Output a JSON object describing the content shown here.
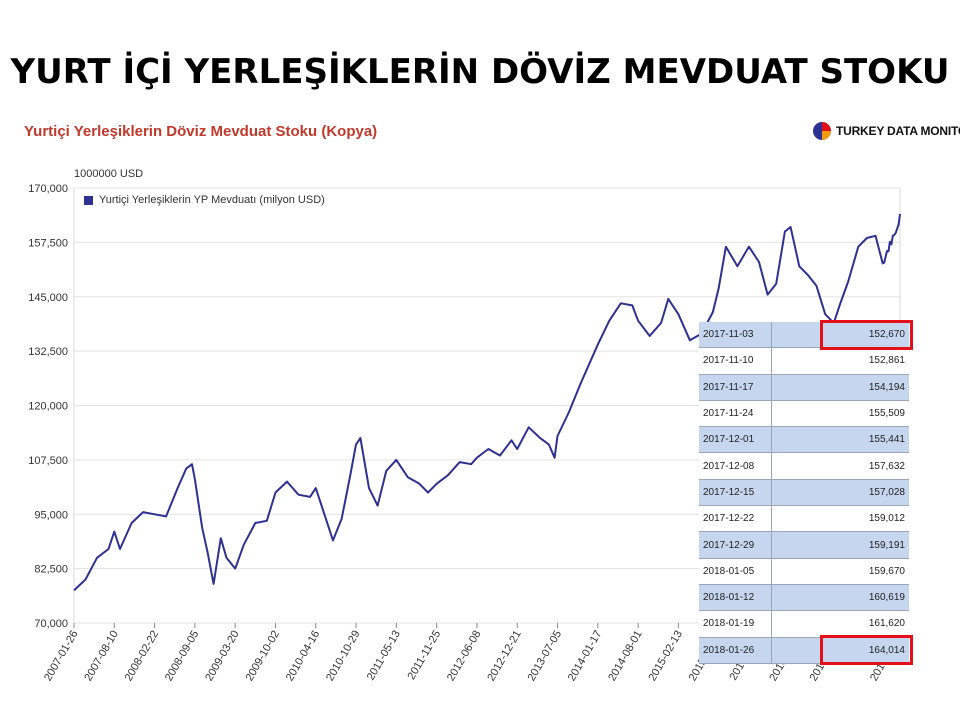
{
  "slide": {
    "title": "YURT İÇİ YERLEŞİKLERİN DÖVİZ MEVDUAT STOKU"
  },
  "chart_header": {
    "title": "Yurtiçi Yerleşiklerin Döviz Mevduat Stoku (Kopya)",
    "brand": "TURKEY DATA MONITOR",
    "unit": "1000000 USD"
  },
  "colors": {
    "line": "#2e3192",
    "title_red": "#c0392b",
    "highlight": "#e3101a",
    "table_shade": "#c6d6ee"
  },
  "chart_data": {
    "type": "line",
    "title": "Yurtiçi Yerleşiklerin Döviz Mevduat Stoku (Kopya)",
    "ylabel": "1000000 USD",
    "ylim": [
      70000,
      170000
    ],
    "y_ticks": [
      "70,000",
      "82,500",
      "95,000",
      "107,500",
      "120,000",
      "132,500",
      "145,000",
      "157,500",
      "170,000"
    ],
    "x_ticks": [
      "2007-01-26",
      "2007-08-10",
      "2008-02-22",
      "2008-09-05",
      "2009-03-20",
      "2009-10-02",
      "2010-04-16",
      "2010-10-29",
      "2011-05-13",
      "2011-11-25",
      "2012-06-08",
      "2012-12-21",
      "2013-07-05",
      "2014-01-17",
      "2014-08-01",
      "2015-02-13",
      "2015-08-28",
      "2016-03-11",
      "2016-09-23",
      "2017-04-07",
      "2018-01-26"
    ],
    "grid": true,
    "legend_position": "top-left",
    "series": [
      {
        "name": "Yurtiçi Yerleşiklerin YP Mevduatı (milyon USD)",
        "points": [
          [
            "2007-01-26",
            77500
          ],
          [
            "2007-03-23",
            80000
          ],
          [
            "2007-05-18",
            85000
          ],
          [
            "2007-07-13",
            87000
          ],
          [
            "2007-08-10",
            91000
          ],
          [
            "2007-09-07",
            87000
          ],
          [
            "2007-11-02",
            93000
          ],
          [
            "2007-12-28",
            95500
          ],
          [
            "2008-02-22",
            95000
          ],
          [
            "2008-04-18",
            94500
          ],
          [
            "2008-06-13",
            101000
          ],
          [
            "2008-07-25",
            105500
          ],
          [
            "2008-08-22",
            106500
          ],
          [
            "2008-09-05",
            103000
          ],
          [
            "2008-10-10",
            92000
          ],
          [
            "2008-11-07",
            86000
          ],
          [
            "2008-12-05",
            79000
          ],
          [
            "2009-01-09",
            89500
          ],
          [
            "2009-02-06",
            85000
          ],
          [
            "2009-03-20",
            82500
          ],
          [
            "2009-05-01",
            88000
          ],
          [
            "2009-06-26",
            93000
          ],
          [
            "2009-08-21",
            93500
          ],
          [
            "2009-10-02",
            100000
          ],
          [
            "2009-11-27",
            102500
          ],
          [
            "2010-01-22",
            99500
          ],
          [
            "2010-03-19",
            99000
          ],
          [
            "2010-04-16",
            101000
          ],
          [
            "2010-05-28",
            95000
          ],
          [
            "2010-07-09",
            89000
          ],
          [
            "2010-08-20",
            94000
          ],
          [
            "2010-10-01",
            104000
          ],
          [
            "2010-10-29",
            111000
          ],
          [
            "2010-11-19",
            112500
          ],
          [
            "2010-12-31",
            101000
          ],
          [
            "2011-02-11",
            97000
          ],
          [
            "2011-03-25",
            105000
          ],
          [
            "2011-05-13",
            107500
          ],
          [
            "2011-07-08",
            103500
          ],
          [
            "2011-09-02",
            102000
          ],
          [
            "2011-10-14",
            100000
          ],
          [
            "2011-11-25",
            102000
          ],
          [
            "2012-01-20",
            104000
          ],
          [
            "2012-03-16",
            107000
          ],
          [
            "2012-05-11",
            106500
          ],
          [
            "2012-06-08",
            108000
          ],
          [
            "2012-08-03",
            110000
          ],
          [
            "2012-09-28",
            108500
          ],
          [
            "2012-11-23",
            112000
          ],
          [
            "2012-12-21",
            110000
          ],
          [
            "2013-02-15",
            115000
          ],
          [
            "2013-04-12",
            112500
          ],
          [
            "2013-05-24",
            111000
          ],
          [
            "2013-06-21",
            108000
          ],
          [
            "2013-07-05",
            113000
          ],
          [
            "2013-08-30",
            118500
          ],
          [
            "2013-10-25",
            125000
          ],
          [
            "2013-12-20",
            131000
          ],
          [
            "2014-01-17",
            134000
          ],
          [
            "2014-03-14",
            139500
          ],
          [
            "2014-05-09",
            143500
          ],
          [
            "2014-07-04",
            143000
          ],
          [
            "2014-08-01",
            139500
          ],
          [
            "2014-09-26",
            136000
          ],
          [
            "2014-11-21",
            139000
          ],
          [
            "2014-12-26",
            144500
          ],
          [
            "2015-02-13",
            141000
          ],
          [
            "2015-04-10",
            135000
          ],
          [
            "2015-06-05",
            136500
          ],
          [
            "2015-07-31",
            141500
          ],
          [
            "2015-08-28",
            147000
          ],
          [
            "2015-10-02",
            156500
          ],
          [
            "2015-11-27",
            152000
          ],
          [
            "2016-01-22",
            156500
          ],
          [
            "2016-03-11",
            153000
          ],
          [
            "2016-04-22",
            145500
          ],
          [
            "2016-06-03",
            148000
          ],
          [
            "2016-07-15",
            160000
          ],
          [
            "2016-08-12",
            161000
          ],
          [
            "2016-09-23",
            152000
          ],
          [
            "2016-11-04",
            150000
          ],
          [
            "2016-12-16",
            147500
          ],
          [
            "2017-01-27",
            141000
          ],
          [
            "2017-03-10",
            139000
          ],
          [
            "2017-04-07",
            143000
          ],
          [
            "2017-05-19",
            148500
          ],
          [
            "2017-07-07",
            156500
          ],
          [
            "2017-08-18",
            158500
          ],
          [
            "2017-09-29",
            159000
          ],
          [
            "2017-11-03",
            152670
          ],
          [
            "2017-11-10",
            152861
          ],
          [
            "2017-11-17",
            154194
          ],
          [
            "2017-11-24",
            155509
          ],
          [
            "2017-12-01",
            155441
          ],
          [
            "2017-12-08",
            157632
          ],
          [
            "2017-12-15",
            157028
          ],
          [
            "2017-12-22",
            159012
          ],
          [
            "2017-12-29",
            159191
          ],
          [
            "2018-01-05",
            159670
          ],
          [
            "2018-01-12",
            160619
          ],
          [
            "2018-01-19",
            161620
          ],
          [
            "2018-01-26",
            164014
          ]
        ]
      }
    ],
    "table": {
      "rows": [
        {
          "date": "2017-11-03",
          "value": "152,670",
          "highlight": true
        },
        {
          "date": "2017-11-10",
          "value": "152,861",
          "highlight": false
        },
        {
          "date": "2017-11-17",
          "value": "154,194",
          "highlight": false
        },
        {
          "date": "2017-11-24",
          "value": "155,509",
          "highlight": false
        },
        {
          "date": "2017-12-01",
          "value": "155,441",
          "highlight": false
        },
        {
          "date": "2017-12-08",
          "value": "157,632",
          "highlight": false
        },
        {
          "date": "2017-12-15",
          "value": "157,028",
          "highlight": false
        },
        {
          "date": "2017-12-22",
          "value": "159,012",
          "highlight": false
        },
        {
          "date": "2017-12-29",
          "value": "159,191",
          "highlight": false
        },
        {
          "date": "2018-01-05",
          "value": "159,670",
          "highlight": false
        },
        {
          "date": "2018-01-12",
          "value": "160,619",
          "highlight": false
        },
        {
          "date": "2018-01-19",
          "value": "161,620",
          "highlight": false
        },
        {
          "date": "2018-01-26",
          "value": "164,014",
          "highlight": true
        }
      ]
    }
  }
}
